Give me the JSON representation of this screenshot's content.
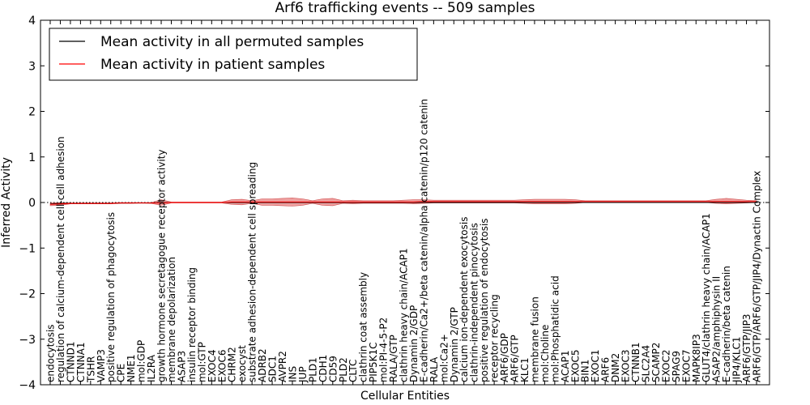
{
  "chart_data": {
    "type": "line",
    "title": "Arf6 trafficking events -- 509 samples",
    "xlabel": "Cellular Entities",
    "ylabel": "Inferred Activity",
    "ylim": [
      -4,
      4
    ],
    "yticks": [
      -4,
      -3,
      -2,
      -1,
      0,
      1,
      2,
      3,
      4
    ],
    "ytick_labels": [
      "−4",
      "−3",
      "−2",
      "−1",
      "0",
      "1",
      "2",
      "3",
      "4"
    ],
    "legend_location": "top-left",
    "categories": [
      "endocytosis",
      "regulation of calcium-dependent cell-cell adhesion",
      "CTNND1",
      "CTNNA1",
      "TSHR",
      "VAMP3",
      "positive regulation of phagocytosis",
      "CPE",
      "NME1",
      "mol:GDP",
      "IL2RA",
      "growth hormone secretagogue receptor activity",
      "membrane depolarization",
      "ASAP3",
      "insulin receptor binding",
      "mol:GTP",
      "EXOC4",
      "EXOC6",
      "CHRM2",
      "exocyst",
      "substrate adhesion-dependent cell spreading",
      "ADRB2",
      "SDC1",
      "AVPR2",
      "INS",
      "JUP",
      "PLD1",
      "CDH1",
      "CD59",
      "PLD2",
      "CLTC",
      "clathrin coat assembly",
      "PIP5K1C",
      "mol:PI-4-5-P2",
      "RALA/GTP",
      "clathrin heavy chain/ACAP1",
      "Dynamin 2/GDP",
      "E-cadherin/Ca2+/beta catenin/alpha catenin/p120 catenin",
      "RALA",
      "mol:Ca2+",
      "Dynamin 2/GTP",
      "calcium ion-dependent exocytosis",
      "clathrin-independent pinocytosis",
      "positive regulation of endocytosis",
      "receptor recycling",
      "ARF6/GDP",
      "ARF6/GTP",
      "KLC1",
      "membrane fusion",
      "mol:Choline",
      "mol:Phosphatidic acid",
      "ACAP1",
      "EXOC5",
      "BIN1",
      "EXOC1",
      "ARF6",
      "DNM2",
      "EXOC3",
      "CTNNB1",
      "SLC2A4",
      "SCAMP2",
      "EXOC2",
      "SPAG9",
      "EXOC7",
      "MAPK8IP3",
      "GLUT4/clathrin heavy chain/ACAP1",
      "ASAP2/amphiphysin II",
      "E-cadherin/beta catenin",
      "JIP4/KLC1",
      "ARF6/GTP/JIP3",
      "ARF6/GTP/ARF6/GTP/JIP4/Dynactin Complex"
    ],
    "series": [
      {
        "name": "Mean activity in all permuted samples",
        "color": "#000000",
        "values": [
          -0.03,
          -0.02,
          -0.02,
          -0.02,
          -0.02,
          -0.02,
          -0.02,
          -0.01,
          -0.01,
          -0.01,
          -0.01,
          0,
          0,
          0,
          0,
          0,
          0,
          0,
          0,
          0,
          0,
          0,
          0,
          0,
          0,
          0,
          0,
          0,
          0,
          0,
          0,
          0,
          0,
          0,
          0,
          0,
          0,
          0,
          0,
          0,
          0,
          0,
          0,
          0,
          0,
          0,
          0,
          0,
          0,
          0,
          0,
          0,
          0,
          0,
          0,
          0,
          0,
          0,
          0,
          0,
          0,
          0,
          0,
          0,
          0,
          0,
          0,
          0,
          0,
          0,
          0
        ]
      },
      {
        "name": "Mean activity in patient samples",
        "color": "#ff0000",
        "band_color": "#e88080",
        "values": [
          -0.04,
          -0.03,
          -0.02,
          -0.02,
          -0.02,
          -0.02,
          -0.02,
          -0.01,
          -0.01,
          -0.01,
          -0.01,
          -0.01,
          0,
          0,
          0,
          0,
          0,
          0,
          0.01,
          0.01,
          0.01,
          0.01,
          0.01,
          0.01,
          0.01,
          0.01,
          0.01,
          0.01,
          0.01,
          0.01,
          0.01,
          0.01,
          0.01,
          0.01,
          0.01,
          0.01,
          0.01,
          0.02,
          0.02,
          0.02,
          0.02,
          0.02,
          0.02,
          0.02,
          0.02,
          0.02,
          0.02,
          0.02,
          0.02,
          0.02,
          0.02,
          0.02,
          0.02,
          0.02,
          0.02,
          0.02,
          0.02,
          0.02,
          0.02,
          0.02,
          0.02,
          0.02,
          0.02,
          0.02,
          0.02,
          0.02,
          0.02,
          0.02,
          0.02,
          0.02,
          0.02
        ],
        "band_low": [
          -0.07,
          -0.06,
          -0.03,
          -0.03,
          -0.03,
          -0.03,
          -0.03,
          -0.02,
          -0.02,
          -0.01,
          -0.02,
          -0.06,
          -0.01,
          -0.01,
          -0.01,
          -0.01,
          -0.01,
          -0.01,
          -0.04,
          -0.05,
          -0.02,
          -0.06,
          -0.06,
          -0.07,
          -0.08,
          -0.06,
          -0.02,
          -0.06,
          -0.07,
          -0.02,
          -0.03,
          -0.02,
          -0.02,
          -0.02,
          -0.02,
          -0.02,
          -0.03,
          -0.02,
          -0.01,
          -0.01,
          -0.01,
          -0.01,
          -0.01,
          -0.01,
          -0.01,
          -0.01,
          -0.01,
          -0.02,
          -0.03,
          -0.03,
          -0.03,
          -0.03,
          -0.02,
          0,
          0,
          0,
          0,
          0,
          0,
          0,
          0,
          0,
          0,
          0,
          0,
          0,
          -0.02,
          -0.03,
          -0.02,
          -0.01,
          0
        ],
        "band_high": [
          -0.01,
          0,
          -0.01,
          -0.01,
          -0.01,
          -0.01,
          -0.01,
          0,
          0,
          0,
          0,
          0.06,
          0.01,
          0.01,
          0.01,
          0.01,
          0.01,
          0.01,
          0.06,
          0.07,
          0.04,
          0.08,
          0.08,
          0.09,
          0.1,
          0.08,
          0.04,
          0.08,
          0.09,
          0.04,
          0.05,
          0.04,
          0.04,
          0.04,
          0.04,
          0.05,
          0.06,
          0.06,
          0.05,
          0.05,
          0.05,
          0.05,
          0.05,
          0.05,
          0.05,
          0.05,
          0.05,
          0.06,
          0.07,
          0.07,
          0.07,
          0.07,
          0.06,
          0.04,
          0.04,
          0.04,
          0.04,
          0.04,
          0.04,
          0.04,
          0.04,
          0.04,
          0.04,
          0.04,
          0.04,
          0.04,
          0.07,
          0.09,
          0.07,
          0.05,
          0.04
        ]
      }
    ]
  }
}
